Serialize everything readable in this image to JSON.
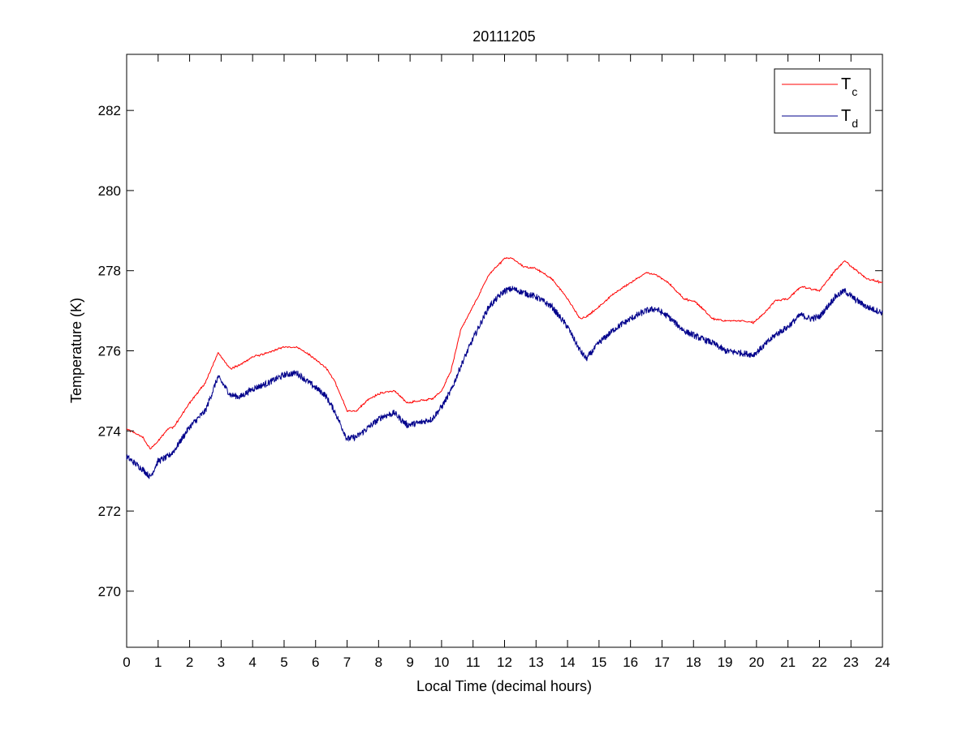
{
  "chart_data": {
    "type": "line",
    "title": "20111205",
    "xlabel": "Local Time (decimal hours)",
    "ylabel": "Temperature (K)",
    "xlim": [
      0,
      24
    ],
    "ylim": [
      268.6,
      283.4
    ],
    "xticks": [
      0,
      1,
      2,
      3,
      4,
      5,
      6,
      7,
      8,
      9,
      10,
      11,
      12,
      13,
      14,
      15,
      16,
      17,
      18,
      19,
      20,
      21,
      22,
      23,
      24
    ],
    "yticks": [
      270,
      272,
      274,
      276,
      278,
      280,
      282
    ],
    "grid": false,
    "legend_position": "top-right",
    "series": [
      {
        "name": "T_c",
        "legend_main": "T",
        "legend_sub": "c",
        "color": "#ff0000",
        "x": [
          0,
          0.5,
          0.75,
          1,
          1.3,
          1.5,
          2,
          2.5,
          2.9,
          3.3,
          3.6,
          4,
          4.5,
          5,
          5.4,
          5.8,
          6.3,
          6.6,
          7,
          7.3,
          7.7,
          8.1,
          8.5,
          8.9,
          9.3,
          9.7,
          10,
          10.3,
          10.6,
          11,
          11.5,
          12,
          12.25,
          12.6,
          13,
          13.5,
          14,
          14.4,
          14.6,
          15,
          15.5,
          16,
          16.5,
          16.8,
          17.2,
          17.7,
          18.1,
          18.6,
          19,
          19.5,
          19.9,
          20.2,
          20.6,
          21,
          21.4,
          21.7,
          22,
          22.5,
          22.8,
          23.1,
          23.5,
          24
        ],
        "y": [
          274.05,
          273.85,
          273.55,
          273.75,
          274.05,
          274.1,
          274.7,
          275.2,
          275.95,
          275.55,
          275.65,
          275.85,
          275.95,
          276.1,
          276.1,
          275.9,
          275.6,
          275.25,
          274.5,
          274.5,
          274.8,
          274.95,
          275.0,
          274.7,
          274.75,
          274.8,
          275.0,
          275.5,
          276.5,
          277.1,
          277.9,
          278.3,
          278.3,
          278.1,
          278.05,
          277.8,
          277.3,
          276.8,
          276.85,
          277.1,
          277.45,
          277.7,
          277.95,
          277.9,
          277.7,
          277.3,
          277.2,
          276.8,
          276.75,
          276.75,
          276.7,
          276.9,
          277.25,
          277.3,
          277.6,
          277.55,
          277.5,
          278.0,
          278.25,
          278.05,
          277.8,
          277.7
        ]
      },
      {
        "name": "T_d",
        "legend_main": "T",
        "legend_sub": "d",
        "color": "#00008b",
        "x": [
          0,
          0.5,
          0.75,
          1,
          1.3,
          1.5,
          2,
          2.5,
          2.9,
          3.3,
          3.6,
          4,
          4.5,
          5,
          5.4,
          5.8,
          6.3,
          6.6,
          7,
          7.3,
          7.7,
          8.1,
          8.5,
          8.9,
          9.3,
          9.7,
          10,
          10.3,
          10.6,
          11,
          11.5,
          12,
          12.25,
          12.6,
          13,
          13.5,
          14,
          14.4,
          14.6,
          15,
          15.5,
          16,
          16.5,
          16.8,
          17.2,
          17.7,
          18.1,
          18.6,
          19,
          19.5,
          19.9,
          20.2,
          20.6,
          21,
          21.4,
          21.7,
          22,
          22.5,
          22.8,
          23.1,
          23.5,
          24
        ],
        "y": [
          273.35,
          273.05,
          272.85,
          273.25,
          273.35,
          273.5,
          274.1,
          274.5,
          275.35,
          274.9,
          274.85,
          275.05,
          275.2,
          275.4,
          275.45,
          275.2,
          274.9,
          274.5,
          273.8,
          273.85,
          274.1,
          274.35,
          274.45,
          274.15,
          274.2,
          274.3,
          274.6,
          275.0,
          275.6,
          276.3,
          277.1,
          277.5,
          277.55,
          277.45,
          277.35,
          277.1,
          276.6,
          276.0,
          275.8,
          276.2,
          276.55,
          276.8,
          277.0,
          277.05,
          276.85,
          276.5,
          276.35,
          276.2,
          276.0,
          275.95,
          275.9,
          276.1,
          276.4,
          276.6,
          276.9,
          276.8,
          276.85,
          277.35,
          277.5,
          277.3,
          277.1,
          276.95
        ]
      }
    ]
  }
}
